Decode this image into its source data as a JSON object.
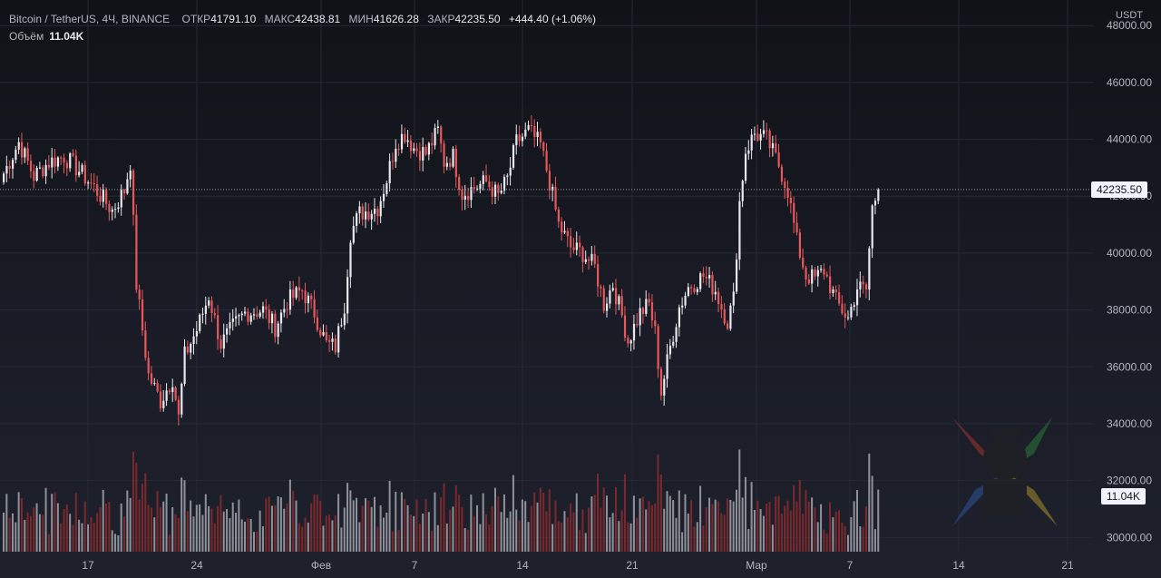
{
  "legend": {
    "symbol": "Bitcoin / TetherUS, 4Ч, BINANCE",
    "open_label": "ОТКР",
    "open_value": "41791.10",
    "high_label": "МАКС",
    "high_value": "42438.81",
    "low_label": "МИН",
    "low_value": "41626.28",
    "close_label": "ЗАКР",
    "close_value": "42235.50",
    "change": "+444.40 (+1.06%)",
    "volume_label": "Объём",
    "volume_value": "11.04K"
  },
  "price_axis": {
    "currency": "USDT"
  },
  "last_price_label": "42235.50",
  "last_volume_label": "11.04K",
  "colors": {
    "up": "#e8e8ee",
    "down": "#e8585a",
    "vol_up": "#a3a6ae",
    "vol_down": "#8c2b2d",
    "grid": "#262a35"
  },
  "chart_data": {
    "type": "candlestick",
    "timeframe": "4h",
    "x_tick_labels": [
      "17",
      "24",
      "Фев",
      "7",
      "14",
      "21",
      "Мар",
      "7",
      "14",
      "21"
    ],
    "y_tick_labels": [
      "30000.00",
      "32000.00",
      "34000.00",
      "36000.00",
      "38000.00",
      "40000.00",
      "42000.00",
      "44000.00",
      "46000.00",
      "48000.00"
    ],
    "ylim": [
      29500,
      48900
    ],
    "last_price": 42235.5,
    "close_path": [
      {
        "bar": 0,
        "close": 42800
      },
      {
        "bar": 5,
        "close": 43900
      },
      {
        "bar": 10,
        "close": 42700
      },
      {
        "bar": 15,
        "close": 43200
      },
      {
        "bar": 20,
        "close": 43400
      },
      {
        "bar": 25,
        "close": 42900
      },
      {
        "bar": 30,
        "close": 42300
      },
      {
        "bar": 36,
        "close": 41500
      },
      {
        "bar": 40,
        "close": 42200
      },
      {
        "bar": 42,
        "close": 43200
      },
      {
        "bar": 44,
        "close": 38900
      },
      {
        "bar": 48,
        "close": 35700
      },
      {
        "bar": 52,
        "close": 34800
      },
      {
        "bar": 56,
        "close": 35600
      },
      {
        "bar": 58,
        "close": 34200
      },
      {
        "bar": 60,
        "close": 36400
      },
      {
        "bar": 64,
        "close": 37300
      },
      {
        "bar": 68,
        "close": 38500
      },
      {
        "bar": 72,
        "close": 36800
      },
      {
        "bar": 76,
        "close": 37400
      },
      {
        "bar": 80,
        "close": 37900
      },
      {
        "bar": 86,
        "close": 38000
      },
      {
        "bar": 90,
        "close": 37400
      },
      {
        "bar": 94,
        "close": 38300
      },
      {
        "bar": 99,
        "close": 38700
      },
      {
        "bar": 103,
        "close": 37900
      },
      {
        "bar": 107,
        "close": 36800
      },
      {
        "bar": 110,
        "close": 36700
      },
      {
        "bar": 113,
        "close": 38200
      },
      {
        "bar": 115,
        "close": 40700
      },
      {
        "bar": 118,
        "close": 41400
      },
      {
        "bar": 124,
        "close": 41600
      },
      {
        "bar": 127,
        "close": 42600
      },
      {
        "bar": 130,
        "close": 43900
      },
      {
        "bar": 133,
        "close": 44200
      },
      {
        "bar": 136,
        "close": 43700
      },
      {
        "bar": 140,
        "close": 43500
      },
      {
        "bar": 144,
        "close": 44300
      },
      {
        "bar": 146,
        "close": 43200
      },
      {
        "bar": 149,
        "close": 43400
      },
      {
        "bar": 152,
        "close": 42100
      },
      {
        "bar": 156,
        "close": 42300
      },
      {
        "bar": 160,
        "close": 42500
      },
      {
        "bar": 164,
        "close": 42000
      },
      {
        "bar": 167,
        "close": 42600
      },
      {
        "bar": 170,
        "close": 43900
      },
      {
        "bar": 174,
        "close": 44300
      },
      {
        "bar": 178,
        "close": 43800
      },
      {
        "bar": 181,
        "close": 42500
      },
      {
        "bar": 184,
        "close": 41000
      },
      {
        "bar": 188,
        "close": 40200
      },
      {
        "bar": 192,
        "close": 40000
      },
      {
        "bar": 196,
        "close": 39500
      },
      {
        "bar": 199,
        "close": 38200
      },
      {
        "bar": 202,
        "close": 38900
      },
      {
        "bar": 205,
        "close": 37800
      },
      {
        "bar": 207,
        "close": 36900
      },
      {
        "bar": 211,
        "close": 37900
      },
      {
        "bar": 214,
        "close": 38200
      },
      {
        "bar": 216,
        "close": 37200
      },
      {
        "bar": 218,
        "close": 35100
      },
      {
        "bar": 221,
        "close": 36700
      },
      {
        "bar": 224,
        "close": 38100
      },
      {
        "bar": 227,
        "close": 38800
      },
      {
        "bar": 232,
        "close": 39200
      },
      {
        "bar": 236,
        "close": 38700
      },
      {
        "bar": 238,
        "close": 38100
      },
      {
        "bar": 240,
        "close": 37600
      },
      {
        "bar": 242,
        "close": 38400
      },
      {
        "bar": 244,
        "close": 41800
      },
      {
        "bar": 246,
        "close": 43600
      },
      {
        "bar": 249,
        "close": 44200
      },
      {
        "bar": 253,
        "close": 44000
      },
      {
        "bar": 257,
        "close": 43100
      },
      {
        "bar": 260,
        "close": 42200
      },
      {
        "bar": 263,
        "close": 40400
      },
      {
        "bar": 266,
        "close": 39200
      },
      {
        "bar": 269,
        "close": 39100
      },
      {
        "bar": 272,
        "close": 39400
      },
      {
        "bar": 276,
        "close": 38300
      },
      {
        "bar": 280,
        "close": 37700
      },
      {
        "bar": 283,
        "close": 38800
      },
      {
        "bar": 286,
        "close": 38700
      },
      {
        "bar": 288,
        "close": 41600
      },
      {
        "bar": 290,
        "close": 42235.5
      }
    ]
  }
}
